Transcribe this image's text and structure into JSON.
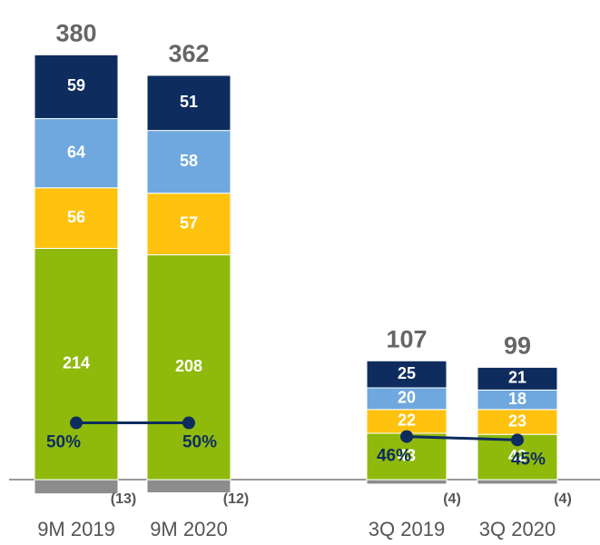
{
  "chart_data": {
    "type": "stacked_bar",
    "categories": [
      "9M 2019",
      "9M 2020",
      "3Q 2019",
      "3Q 2020"
    ],
    "series": [
      {
        "color": "#8fba0c",
        "values": [
          214,
          208,
          43,
          42
        ]
      },
      {
        "color": "#ffc20e",
        "values": [
          56,
          57,
          22,
          23
        ]
      },
      {
        "color": "#6ea8de",
        "values": [
          64,
          58,
          20,
          18
        ]
      },
      {
        "color": "#0e2d5e",
        "values": [
          59,
          51,
          25,
          21
        ]
      },
      {
        "color": "#8c8c8c",
        "values": [
          -13,
          -12,
          -4,
          -4
        ],
        "value_labels": [
          "(13)",
          "(12)",
          "(4)",
          "(4)"
        ]
      }
    ],
    "totals": [
      380,
      362,
      107,
      99
    ],
    "lines": [
      {
        "color": "#0e2d5e",
        "axis": "y2",
        "values": [
          50,
          50,
          null,
          null
        ],
        "value_labels": [
          "50%",
          "50%",
          null,
          null
        ]
      },
      {
        "color": "#0e2d5e",
        "axis": "y2",
        "values": [
          null,
          null,
          46,
          45
        ],
        "value_labels": [
          null,
          null,
          "46%",
          "45%"
        ]
      }
    ],
    "ylim": [
      -20,
      400
    ],
    "y2lim": [
      27,
      160
    ]
  }
}
